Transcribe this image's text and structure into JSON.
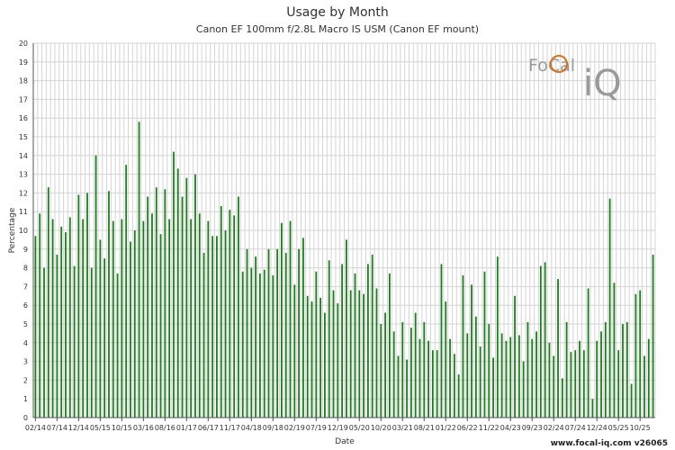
{
  "chart_data": {
    "type": "bar",
    "title": "Usage by Month",
    "subtitle": "Canon EF 100mm f/2.8L Macro IS USM (Canon EF mount)",
    "xlabel": "Date",
    "ylabel": "Percentage",
    "ylim": [
      0,
      20
    ],
    "yticks": [
      0,
      1,
      2,
      3,
      4,
      5,
      6,
      7,
      8,
      9,
      10,
      11,
      12,
      13,
      14,
      15,
      16,
      17,
      18,
      19,
      20
    ],
    "grid": true,
    "bar_color": "#1f7a1f",
    "x_tick_labels": [
      "02/14",
      "07/14",
      "12/14",
      "05/15",
      "10/15",
      "03/16",
      "08/16",
      "01/17",
      "06/17",
      "11/17",
      "04/18",
      "09/18",
      "02/19",
      "07/19",
      "12/19",
      "05/20",
      "10/20",
      "03/21",
      "08/21",
      "01/22",
      "06/22",
      "11/22",
      "04/23",
      "09/23",
      "02/24",
      "07/24",
      "12/24",
      "05/25",
      "10/25"
    ],
    "values": [
      9.7,
      10.9,
      8.0,
      12.3,
      10.6,
      8.7,
      10.2,
      9.9,
      10.7,
      8.1,
      11.9,
      10.6,
      12.0,
      8.0,
      14.0,
      9.5,
      8.5,
      12.1,
      10.5,
      7.7,
      10.6,
      13.5,
      9.4,
      10.0,
      15.8,
      10.5,
      11.8,
      10.9,
      12.3,
      9.8,
      12.2,
      10.6,
      14.2,
      13.3,
      11.8,
      12.8,
      10.6,
      13.0,
      10.9,
      8.8,
      10.5,
      9.7,
      9.7,
      11.3,
      10.0,
      11.1,
      10.8,
      11.8,
      7.8,
      9.0,
      8.0,
      8.6,
      7.7,
      7.9,
      9.0,
      7.6,
      9.0,
      10.4,
      8.8,
      10.5,
      7.1,
      9.0,
      9.6,
      6.5,
      6.2,
      7.8,
      6.4,
      5.6,
      8.4,
      6.8,
      6.1,
      8.2,
      9.5,
      6.8,
      7.7,
      6.8,
      6.6,
      8.2,
      8.7,
      6.9,
      5.0,
      5.6,
      7.7,
      4.6,
      3.3,
      5.1,
      3.1,
      4.8,
      5.6,
      4.2,
      5.1,
      4.1,
      3.6,
      3.6,
      8.2,
      6.2,
      4.2,
      3.4,
      2.3,
      7.6,
      4.5,
      7.1,
      5.4,
      3.8,
      7.8,
      5.0,
      3.2,
      8.6,
      4.5,
      4.1,
      4.3,
      6.5,
      4.4,
      3.0,
      5.1,
      4.2,
      4.6,
      8.1,
      8.3,
      4.0,
      3.3,
      7.4,
      2.1,
      5.1,
      3.5,
      3.6,
      4.1,
      3.6,
      6.9,
      1.0,
      4.1,
      4.6,
      5.1,
      11.7,
      7.2,
      3.6,
      5.0,
      5.1,
      1.8,
      6.6,
      6.8,
      3.3,
      4.2,
      8.7
    ]
  },
  "logo": {
    "text_main": "FoCal",
    "text_big": "iQ",
    "accent_color": "#d9711f",
    "grey_color": "#9a9a9a"
  },
  "footer": {
    "text": "www.focal-iq.com  v26065"
  }
}
